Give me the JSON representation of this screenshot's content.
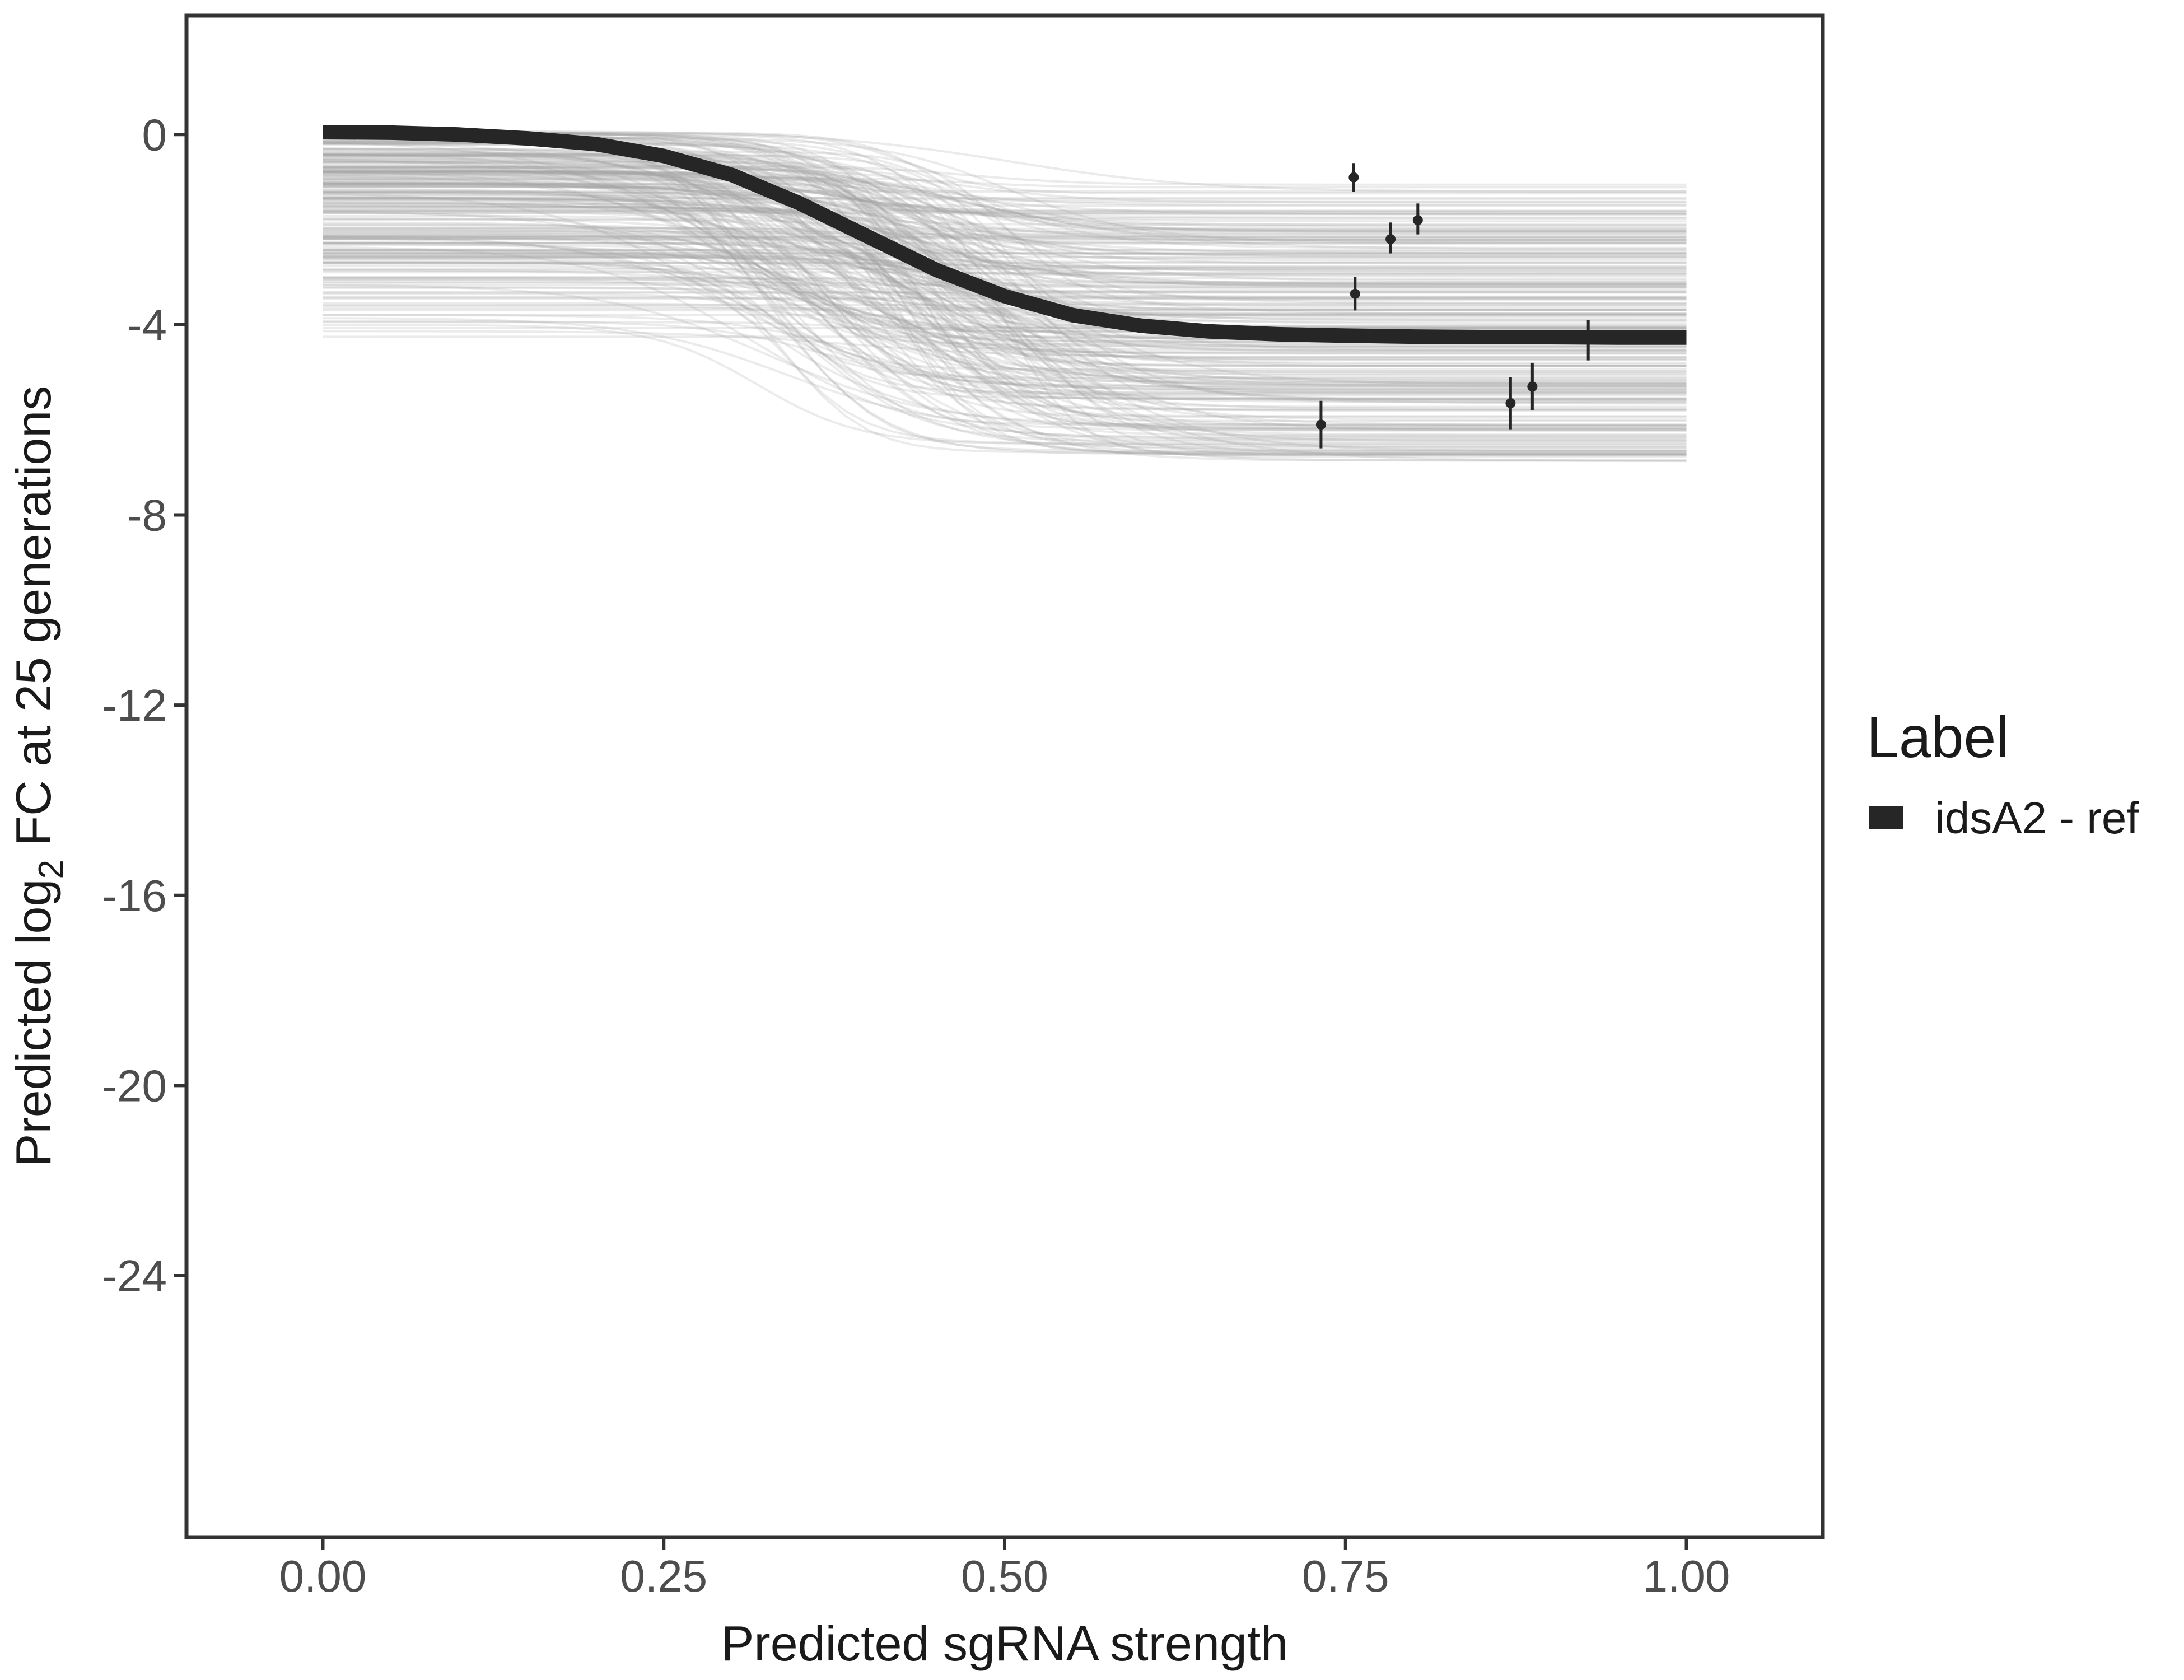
{
  "chart_data": {
    "type": "line",
    "title": "",
    "xlabel": "Predicted sgRNA strength",
    "ylabel": {
      "prefix": "Predicted  log",
      "subscript": "2",
      "suffix": " FC at 25 generations"
    },
    "xlim": [
      -0.1,
      1.1
    ],
    "ylim": [
      -29.5,
      2.5
    ],
    "x_ticks": [
      0,
      0.25,
      0.5,
      0.75,
      1
    ],
    "x_tick_labels": [
      "0.00",
      "0.25",
      "0.50",
      "0.75",
      "1.00"
    ],
    "y_ticks": [
      0,
      -4,
      -8,
      -12,
      -16,
      -20,
      -24
    ],
    "y_tick_labels": [
      "0",
      "-4",
      "-8",
      "-12",
      "-16",
      "-20",
      "-24"
    ],
    "grid": false,
    "legend": {
      "title": "Label",
      "position": "right",
      "entries": [
        {
          "label": "idsA2 - ref",
          "color": "#262626"
        }
      ]
    },
    "series": [
      {
        "name": "idsA2 - ref",
        "kind": "fitted-curve",
        "color": "#262626",
        "x": [
          0,
          0.05,
          0.1,
          0.15,
          0.2,
          0.25,
          0.3,
          0.35,
          0.4,
          0.45,
          0.5,
          0.55,
          0.6,
          0.65,
          0.7,
          0.75,
          0.8,
          0.85,
          0.9,
          0.95,
          1.0
        ],
        "y": [
          0.05,
          0.04,
          0.0,
          -0.08,
          -0.2,
          -0.45,
          -0.85,
          -1.45,
          -2.15,
          -2.85,
          -3.4,
          -3.8,
          -4.02,
          -4.14,
          -4.2,
          -4.23,
          -4.25,
          -4.26,
          -4.26,
          -4.27,
          -4.27
        ]
      }
    ],
    "posterior_draws": {
      "color": "#a6a6a6",
      "count": 260,
      "y_start_range": [
        -4.4,
        0.1
      ],
      "y_end_range": [
        -6.9,
        -1.0
      ]
    },
    "points": [
      {
        "x": 0.732,
        "y": -6.1,
        "ylo": -6.6,
        "yhi": -5.6
      },
      {
        "x": 0.756,
        "y": -0.9,
        "ylo": -1.2,
        "yhi": -0.6
      },
      {
        "x": 0.757,
        "y": -3.35,
        "ylo": -3.7,
        "yhi": -3.0
      },
      {
        "x": 0.783,
        "y": -2.2,
        "ylo": -2.5,
        "yhi": -1.85
      },
      {
        "x": 0.803,
        "y": -1.8,
        "ylo": -2.1,
        "yhi": -1.45
      },
      {
        "x": 0.871,
        "y": -5.65,
        "ylo": -6.2,
        "yhi": -5.1
      },
      {
        "x": 0.887,
        "y": -5.3,
        "ylo": -5.8,
        "yhi": -4.8
      },
      {
        "x": 0.928,
        "y": -4.3,
        "ylo": -4.75,
        "yhi": -3.9
      }
    ]
  }
}
